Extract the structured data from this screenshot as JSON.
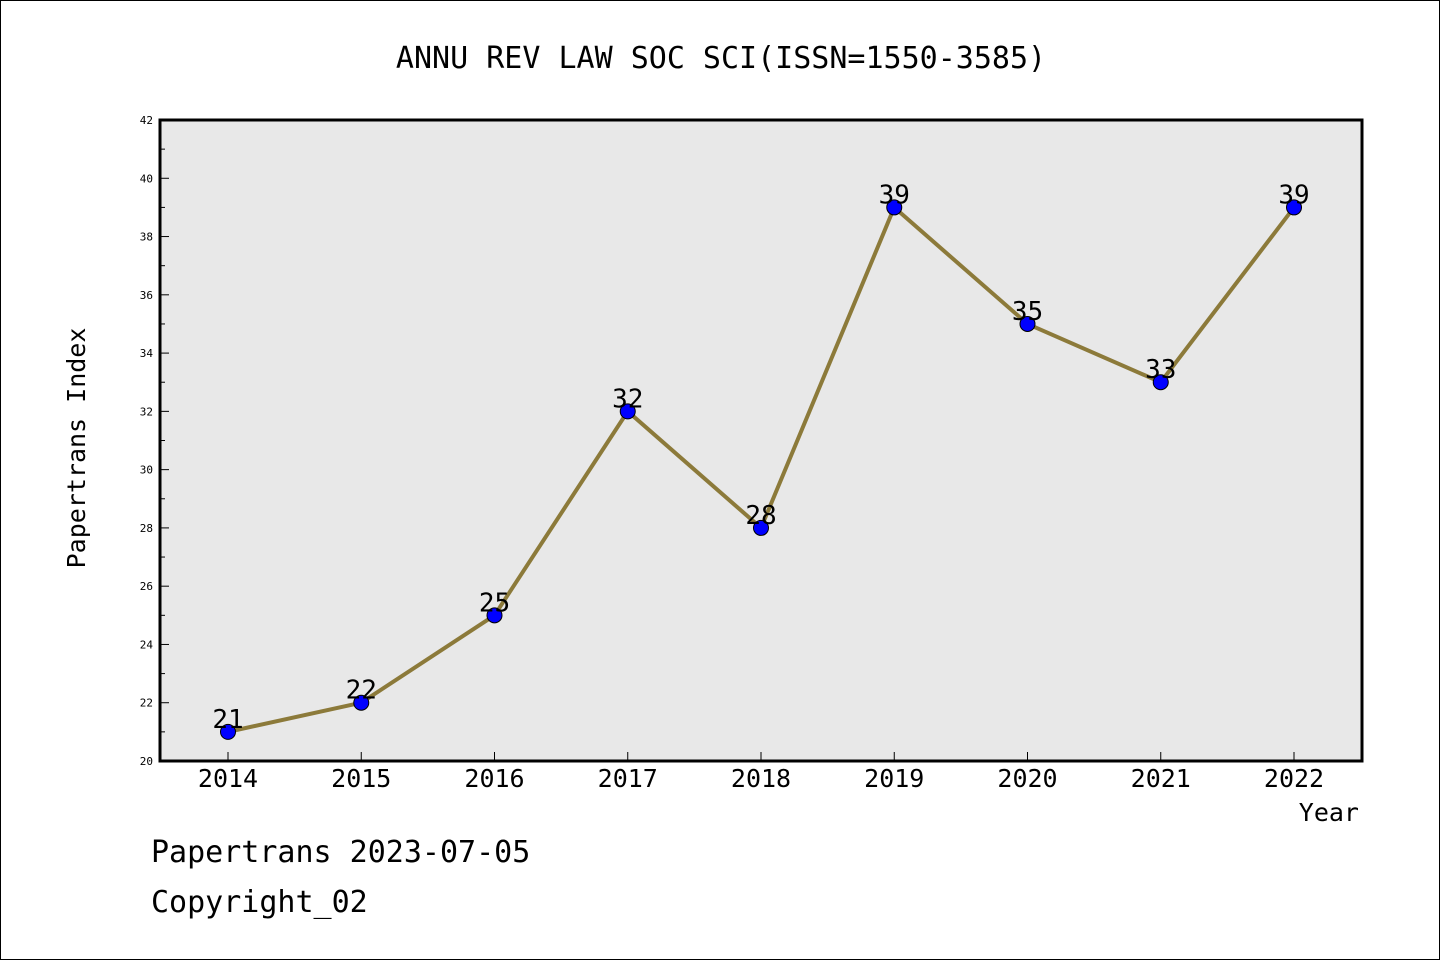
{
  "chart_data": {
    "type": "line",
    "title": "ANNU REV LAW SOC SCI(ISSN=1550-3585)",
    "xlabel": "Year",
    "ylabel": "Papertrans Index",
    "categories": [
      "2014",
      "2015",
      "2016",
      "2017",
      "2018",
      "2019",
      "2020",
      "2021",
      "2022"
    ],
    "values": [
      21,
      22,
      25,
      32,
      28,
      39,
      35,
      33,
      39
    ],
    "data_labels": [
      "21",
      "22",
      "25",
      "32",
      "28",
      "39",
      "35",
      "33",
      "39"
    ],
    "ylim": [
      20,
      42
    ],
    "yticks": [
      "20",
      "22",
      "24",
      "26",
      "28",
      "30",
      "32",
      "34",
      "36",
      "38",
      "40",
      "42"
    ],
    "grid": false,
    "line_color": "#8c7a3a",
    "marker_color": "#0000ff",
    "plot_background": "#e8e8e8"
  },
  "footer": {
    "line1": "Papertrans 2023-07-05",
    "line2": "Copyright_02"
  }
}
